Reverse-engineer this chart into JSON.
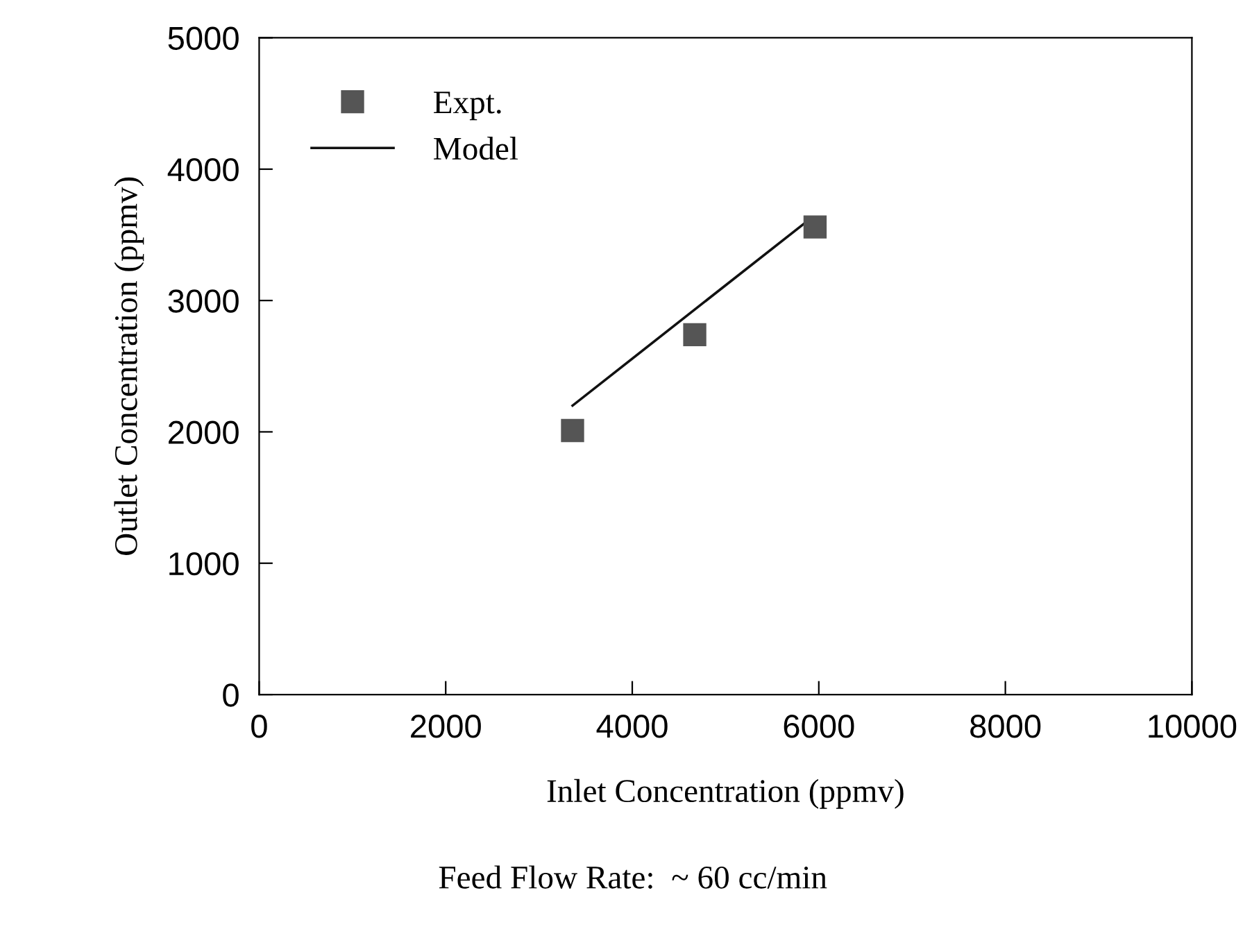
{
  "chart_data": {
    "type": "scatter",
    "xlabel": "Inlet Concentration (ppmv)",
    "ylabel": "Outlet Concentration (ppmv)",
    "annotations": [
      "Feed Flow Rate:  ~ 60 cc/min"
    ],
    "series": [
      {
        "name": "Expt.",
        "color": "#555555",
        "marker": "square",
        "x": [
          3360,
          4670,
          5960
        ],
        "values": [
          2010,
          2740,
          3560
        ]
      },
      {
        "name": "Model",
        "type": "line",
        "color": "#111111",
        "marker": "none",
        "line_style": "solid",
        "x": [
          3360,
          5850
        ],
        "values": [
          2200,
          3590
        ]
      }
    ],
    "xlim": [
      0,
      10000
    ],
    "xticks": [
      0,
      2000,
      4000,
      6000,
      8000,
      10000
    ],
    "ylim": [
      0,
      5000
    ],
    "yticks": [
      0,
      1000,
      2000,
      3000,
      4000,
      5000
    ],
    "grid": false,
    "legend": "top left"
  }
}
